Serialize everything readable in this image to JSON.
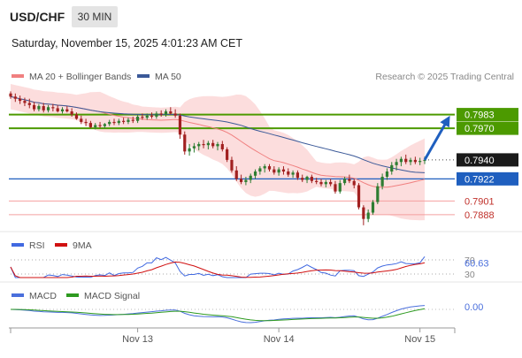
{
  "header": {
    "symbol": "USD/CHF",
    "timeframe": "30 MIN",
    "datetime": "Saturday, November 15, 2025 4:01:23 AM CET"
  },
  "colors": {
    "bollinger_fill": "#fbd7d7",
    "ma20": "#f08080",
    "ma50": "#3b5998",
    "up_candle": "#2e7d32",
    "down_candle": "#a12020",
    "resistance_line": "#4c9a00",
    "support_line": "#1f5fbf",
    "minor_level": "#f4a0a0",
    "minor_level_text": "#c0302a",
    "price_tag": "#1a1a1a",
    "arrow": "#1f5fbf",
    "rsi": "#4169e1",
    "rsi_ma": "#d01010",
    "macd": "#4a6fdc",
    "macd_signal": "#2e9a20"
  },
  "chart_data": [
    {
      "type": "candlestick",
      "panel": "price",
      "legend": [
        {
          "name": "MA 20 + Bollinger Bands",
          "color": "#f08080"
        },
        {
          "name": "MA 50",
          "color": "#3b5998"
        }
      ],
      "credit": "Research © 2025 Trading Central",
      "ylim": [
        0.7872,
        0.8012
      ],
      "xlim": [
        0,
        93
      ],
      "x_ticks": [
        {
          "index": 27,
          "label": "Nov 13"
        },
        {
          "index": 57,
          "label": "Nov 14"
        },
        {
          "index": 87,
          "label": "Nov 15"
        }
      ],
      "candles": [
        [
          0.8003,
          0.8005,
          0.7998,
          0.8
        ],
        [
          0.8,
          0.8003,
          0.7995,
          0.7998
        ],
        [
          0.7998,
          0.8001,
          0.7993,
          0.7996
        ],
        [
          0.7996,
          0.7999,
          0.7991,
          0.7994
        ],
        [
          0.7994,
          0.7998,
          0.7989,
          0.7992
        ],
        [
          0.7992,
          0.7995,
          0.7986,
          0.7988
        ],
        [
          0.7988,
          0.7993,
          0.7986,
          0.7991
        ],
        [
          0.7991,
          0.7994,
          0.7985,
          0.7987
        ],
        [
          0.7987,
          0.7992,
          0.7985,
          0.799
        ],
        [
          0.799,
          0.7993,
          0.7986,
          0.7989
        ],
        [
          0.7989,
          0.7992,
          0.7985,
          0.7986
        ],
        [
          0.7986,
          0.799,
          0.7984,
          0.7988
        ],
        [
          0.7988,
          0.7991,
          0.7985,
          0.7986
        ],
        [
          0.7986,
          0.7989,
          0.7981,
          0.7983
        ],
        [
          0.7983,
          0.7985,
          0.7978,
          0.7979
        ],
        [
          0.7979,
          0.7982,
          0.7974,
          0.7976
        ],
        [
          0.7976,
          0.7979,
          0.7972,
          0.7975
        ],
        [
          0.7975,
          0.7977,
          0.797,
          0.7971
        ],
        [
          0.7971,
          0.7975,
          0.7969,
          0.7973
        ],
        [
          0.7973,
          0.7976,
          0.797,
          0.7972
        ],
        [
          0.7972,
          0.7975,
          0.797,
          0.7974
        ],
        [
          0.7974,
          0.7978,
          0.7972,
          0.7976
        ],
        [
          0.7976,
          0.7979,
          0.7973,
          0.7975
        ],
        [
          0.7975,
          0.7979,
          0.7973,
          0.7977
        ],
        [
          0.7977,
          0.798,
          0.7974,
          0.7976
        ],
        [
          0.7976,
          0.798,
          0.7974,
          0.7978
        ],
        [
          0.7978,
          0.7981,
          0.7975,
          0.7977
        ],
        [
          0.7977,
          0.7983,
          0.7975,
          0.7981
        ],
        [
          0.7981,
          0.7984,
          0.7978,
          0.798
        ],
        [
          0.798,
          0.7984,
          0.7978,
          0.7982
        ],
        [
          0.7982,
          0.7985,
          0.7979,
          0.7981
        ],
        [
          0.7981,
          0.7986,
          0.7979,
          0.7984
        ],
        [
          0.7984,
          0.7987,
          0.7981,
          0.7983
        ],
        [
          0.7983,
          0.7988,
          0.7981,
          0.7986
        ],
        [
          0.7986,
          0.799,
          0.7983,
          0.7984
        ],
        [
          0.7984,
          0.7988,
          0.798,
          0.7982
        ],
        [
          0.7982,
          0.7984,
          0.796,
          0.7964
        ],
        [
          0.7964,
          0.7967,
          0.7945,
          0.7948
        ],
        [
          0.7948,
          0.7955,
          0.7944,
          0.7951
        ],
        [
          0.7951,
          0.7956,
          0.7947,
          0.7953
        ],
        [
          0.7953,
          0.7957,
          0.7949,
          0.7955
        ],
        [
          0.7955,
          0.7959,
          0.7951,
          0.7954
        ],
        [
          0.7954,
          0.7958,
          0.795,
          0.7956
        ],
        [
          0.7956,
          0.7959,
          0.7951,
          0.7953
        ],
        [
          0.7953,
          0.7957,
          0.7949,
          0.7955
        ],
        [
          0.7955,
          0.7958,
          0.7948,
          0.795
        ],
        [
          0.795,
          0.7952,
          0.7938,
          0.794
        ],
        [
          0.794,
          0.7943,
          0.7928,
          0.793
        ],
        [
          0.793,
          0.7934,
          0.792,
          0.7922
        ],
        [
          0.7922,
          0.7926,
          0.7917,
          0.7919
        ],
        [
          0.7919,
          0.7924,
          0.7916,
          0.7921
        ],
        [
          0.7921,
          0.7927,
          0.7918,
          0.7925
        ],
        [
          0.7925,
          0.7931,
          0.7922,
          0.7929
        ],
        [
          0.7929,
          0.7934,
          0.7926,
          0.7932
        ],
        [
          0.7932,
          0.7936,
          0.7928,
          0.7934
        ],
        [
          0.7934,
          0.7936,
          0.7929,
          0.7931
        ],
        [
          0.7931,
          0.7934,
          0.7926,
          0.7928
        ],
        [
          0.7928,
          0.7933,
          0.7925,
          0.7931
        ],
        [
          0.7931,
          0.7934,
          0.7926,
          0.7929
        ],
        [
          0.7929,
          0.7932,
          0.7924,
          0.7926
        ],
        [
          0.7926,
          0.793,
          0.7923,
          0.7928
        ],
        [
          0.7928,
          0.793,
          0.7921,
          0.7923
        ],
        [
          0.7923,
          0.7926,
          0.7919,
          0.7921
        ],
        [
          0.7921,
          0.7925,
          0.7918,
          0.7924
        ],
        [
          0.7924,
          0.7926,
          0.7918,
          0.792
        ],
        [
          0.792,
          0.7923,
          0.7917,
          0.7919
        ],
        [
          0.7919,
          0.7922,
          0.7915,
          0.7917
        ],
        [
          0.7917,
          0.7921,
          0.7914,
          0.7919
        ],
        [
          0.7919,
          0.7922,
          0.7915,
          0.7917
        ],
        [
          0.7917,
          0.792,
          0.7908,
          0.791
        ],
        [
          0.791,
          0.7921,
          0.7908,
          0.7918
        ],
        [
          0.7918,
          0.7924,
          0.7916,
          0.7922
        ],
        [
          0.7922,
          0.7926,
          0.7918,
          0.792
        ],
        [
          0.792,
          0.7922,
          0.7913,
          0.7916
        ],
        [
          0.7916,
          0.7918,
          0.7893,
          0.7895
        ],
        [
          0.7895,
          0.7897,
          0.7878,
          0.7884
        ],
        [
          0.7884,
          0.7893,
          0.7881,
          0.789
        ],
        [
          0.789,
          0.7902,
          0.7888,
          0.79
        ],
        [
          0.79,
          0.7918,
          0.7898,
          0.7915
        ],
        [
          0.7915,
          0.7927,
          0.7912,
          0.7924
        ],
        [
          0.7924,
          0.7932,
          0.7921,
          0.7929
        ],
        [
          0.7929,
          0.7938,
          0.7926,
          0.7935
        ],
        [
          0.7935,
          0.7941,
          0.793,
          0.7938
        ],
        [
          0.7938,
          0.7943,
          0.7934,
          0.7941
        ],
        [
          0.7941,
          0.7945,
          0.7936,
          0.7938
        ],
        [
          0.7938,
          0.7942,
          0.7935,
          0.794
        ],
        [
          0.794,
          0.7943,
          0.7936,
          0.7938
        ],
        [
          0.7938,
          0.7942,
          0.7935,
          0.7939
        ],
        [
          0.7939,
          0.7943,
          0.7936,
          0.794
        ]
      ],
      "levels": [
        {
          "value": 0.7983,
          "label": "0.7983",
          "style": "resistance"
        },
        {
          "value": 0.797,
          "label": "0.7970",
          "style": "resistance"
        },
        {
          "value": 0.794,
          "label": "0.7940",
          "style": "last_price"
        },
        {
          "value": 0.7922,
          "label": "0.7922",
          "style": "pivot"
        },
        {
          "value": 0.7901,
          "label": "0.7901",
          "style": "support"
        },
        {
          "value": 0.7888,
          "label": "0.7888",
          "style": "support"
        }
      ],
      "arrow": {
        "from": [
          88,
          0.794
        ],
        "to": [
          93,
          0.7979
        ]
      }
    },
    {
      "type": "line",
      "panel": "rsi",
      "legend": [
        {
          "name": "RSI",
          "color": "#4169e1"
        },
        {
          "name": "9MA",
          "color": "#d01010"
        }
      ],
      "ylim": [
        20,
        80
      ],
      "y_ticks": [
        "70",
        "30"
      ],
      "last_value": "60.63"
    },
    {
      "type": "line",
      "panel": "macd",
      "legend": [
        {
          "name": "MACD",
          "color": "#4a6fdc"
        },
        {
          "name": "MACD Signal",
          "color": "#2e9a20"
        }
      ],
      "last_value": "0.00"
    }
  ]
}
